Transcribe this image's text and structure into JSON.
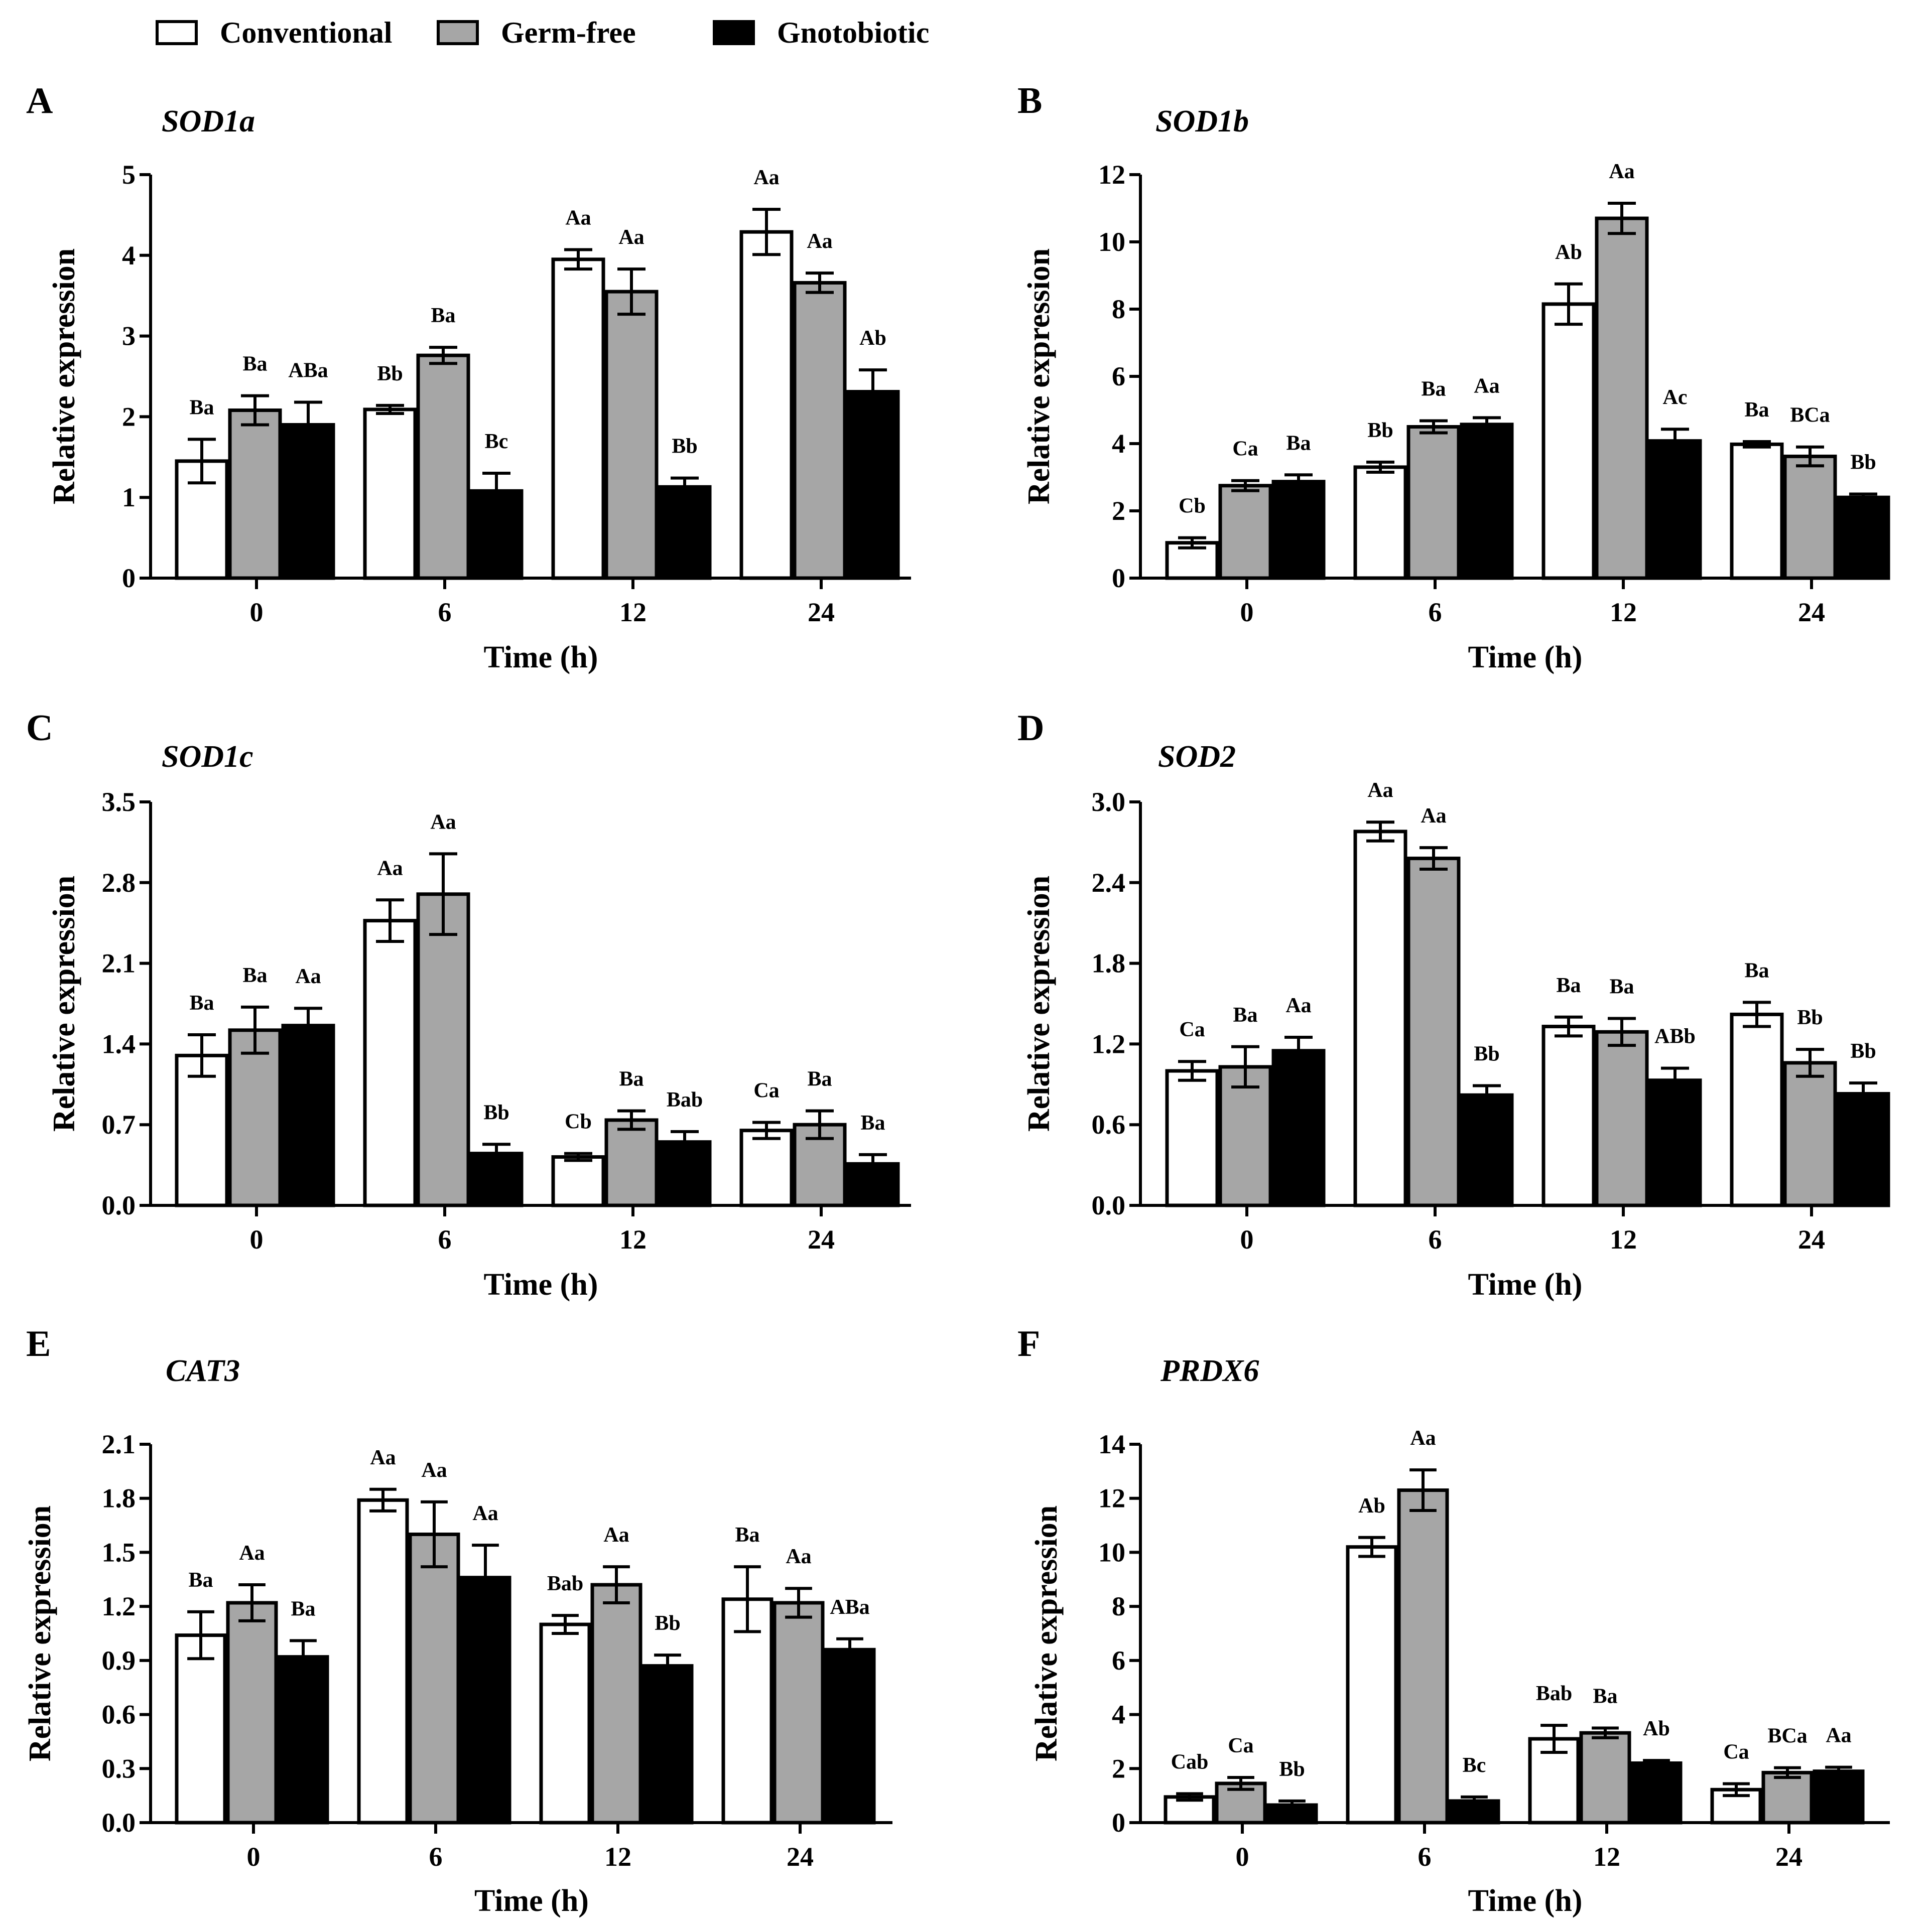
{
  "legend": {
    "items": [
      {
        "label": "Conventional",
        "color": "#ffffff"
      },
      {
        "label": "Germ-free",
        "color": "#a6a6a6"
      },
      {
        "label": "Gnotobiotic",
        "color": "#000000"
      }
    ]
  },
  "chart_data": [
    {
      "id": "A",
      "type": "bar",
      "title": "SOD1a",
      "xlabel": "Time (h)",
      "ylabel": "Relative expression",
      "categories": [
        "0",
        "6",
        "12",
        "24"
      ],
      "ylim": [
        0,
        5
      ],
      "yticks": [
        "0",
        "1",
        "2",
        "3",
        "4",
        "5"
      ],
      "series": [
        {
          "name": "Conventional",
          "values": [
            1.45,
            2.09,
            3.95,
            4.29
          ],
          "errors": [
            0.27,
            0.05,
            0.12,
            0.28
          ],
          "labels": [
            "Ba",
            "Bb",
            "Aa",
            "Aa"
          ]
        },
        {
          "name": "Germ-free",
          "values": [
            2.08,
            2.76,
            3.55,
            3.66
          ],
          "errors": [
            0.18,
            0.1,
            0.28,
            0.12
          ],
          "labels": [
            "Ba",
            "Ba",
            "Aa",
            "Aa"
          ]
        },
        {
          "name": "Gnotobiotic",
          "values": [
            1.9,
            1.08,
            1.13,
            2.31
          ],
          "errors": [
            0.28,
            0.22,
            0.11,
            0.27
          ],
          "labels": [
            "ABa",
            "Bc",
            "Bb",
            "Ab"
          ]
        }
      ]
    },
    {
      "id": "B",
      "type": "bar",
      "title": "SOD1b",
      "xlabel": "Time (h)",
      "ylabel": "Relative expression",
      "categories": [
        "0",
        "6",
        "12",
        "24"
      ],
      "ylim": [
        0,
        12
      ],
      "yticks": [
        "0",
        "2",
        "4",
        "6",
        "8",
        "10",
        "12"
      ],
      "series": [
        {
          "name": "Conventional",
          "values": [
            1.05,
            3.3,
            8.15,
            3.98
          ],
          "errors": [
            0.15,
            0.15,
            0.6,
            0.08
          ],
          "labels": [
            "Cb",
            "Bb",
            "Ab",
            "Ba"
          ]
        },
        {
          "name": "Germ-free",
          "values": [
            2.75,
            4.5,
            10.7,
            3.62
          ],
          "errors": [
            0.15,
            0.18,
            0.45,
            0.28
          ],
          "labels": [
            "Ca",
            "Ba",
            "Aa",
            "BCa"
          ]
        },
        {
          "name": "Gnotobiotic",
          "values": [
            2.87,
            4.57,
            4.08,
            2.4
          ],
          "errors": [
            0.2,
            0.2,
            0.35,
            0.1
          ],
          "labels": [
            "Ba",
            "Aa",
            "Ac",
            "Bb"
          ]
        }
      ]
    },
    {
      "id": "C",
      "type": "bar",
      "title": "SOD1c",
      "xlabel": "Time (h)",
      "ylabel": "Relative expression",
      "categories": [
        "0",
        "6",
        "12",
        "24"
      ],
      "ylim": [
        0,
        3.5
      ],
      "yticks": [
        "0.0",
        "0.7",
        "1.4",
        "2.1",
        "2.8",
        "3.5"
      ],
      "series": [
        {
          "name": "Conventional",
          "values": [
            1.3,
            2.47,
            0.42,
            0.65
          ],
          "errors": [
            0.18,
            0.18,
            0.03,
            0.07
          ],
          "labels": [
            "Ba",
            "Aa",
            "Cb",
            "Ca"
          ]
        },
        {
          "name": "Germ-free",
          "values": [
            1.52,
            2.7,
            0.74,
            0.7
          ],
          "errors": [
            0.2,
            0.35,
            0.08,
            0.12
          ],
          "labels": [
            "Ba",
            "Aa",
            "Ba",
            "Ba"
          ]
        },
        {
          "name": "Gnotobiotic",
          "values": [
            1.56,
            0.45,
            0.55,
            0.36
          ],
          "errors": [
            0.15,
            0.08,
            0.09,
            0.08
          ],
          "labels": [
            "Aa",
            "Bb",
            "Bab",
            "Ba"
          ]
        }
      ]
    },
    {
      "id": "D",
      "type": "bar",
      "title": "SOD2",
      "xlabel": "Time (h)",
      "ylabel": "Relative expression",
      "categories": [
        "0",
        "6",
        "12",
        "24"
      ],
      "ylim": [
        0,
        3.0
      ],
      "yticks": [
        "0.0",
        "0.6",
        "1.2",
        "1.8",
        "2.4",
        "3.0"
      ],
      "series": [
        {
          "name": "Conventional",
          "values": [
            1.0,
            2.78,
            1.33,
            1.42
          ],
          "errors": [
            0.07,
            0.07,
            0.07,
            0.09
          ],
          "labels": [
            "Ca",
            "Aa",
            "Ba",
            "Ba"
          ]
        },
        {
          "name": "Germ-free",
          "values": [
            1.03,
            2.58,
            1.29,
            1.06
          ],
          "errors": [
            0.15,
            0.08,
            0.1,
            0.1
          ],
          "labels": [
            "Ba",
            "Aa",
            "Ba",
            "Bb"
          ]
        },
        {
          "name": "Gnotobiotic",
          "values": [
            1.15,
            0.82,
            0.93,
            0.83
          ],
          "errors": [
            0.1,
            0.07,
            0.09,
            0.08
          ],
          "labels": [
            "Aa",
            "Bb",
            "ABb",
            "Bb"
          ]
        }
      ]
    },
    {
      "id": "E",
      "type": "bar",
      "title": "CAT3",
      "xlabel": "Time (h)",
      "ylabel": "Relative expression",
      "categories": [
        "0",
        "6",
        "12",
        "24"
      ],
      "ylim": [
        0,
        2.1
      ],
      "yticks": [
        "0.0",
        "0.3",
        "0.6",
        "0.9",
        "1.2",
        "1.5",
        "1.8",
        "2.1"
      ],
      "series": [
        {
          "name": "Conventional",
          "values": [
            1.04,
            1.79,
            1.1,
            1.24
          ],
          "errors": [
            0.13,
            0.06,
            0.05,
            0.18
          ],
          "labels": [
            "Ba",
            "Aa",
            "Bab",
            "Ba"
          ]
        },
        {
          "name": "Germ-free",
          "values": [
            1.22,
            1.6,
            1.32,
            1.22
          ],
          "errors": [
            0.1,
            0.18,
            0.1,
            0.08
          ],
          "labels": [
            "Aa",
            "Aa",
            "Aa",
            "Aa"
          ]
        },
        {
          "name": "Gnotobiotic",
          "values": [
            0.92,
            1.36,
            0.87,
            0.96
          ],
          "errors": [
            0.09,
            0.18,
            0.06,
            0.06
          ],
          "labels": [
            "Ba",
            "Aa",
            "Bb",
            "ABa"
          ]
        }
      ]
    },
    {
      "id": "F",
      "type": "bar",
      "title": "PRDX6",
      "xlabel": "Time (h)",
      "ylabel": "Relative expression",
      "categories": [
        "0",
        "6",
        "12",
        "24"
      ],
      "ylim": [
        0,
        14
      ],
      "yticks": [
        "0",
        "2",
        "4",
        "6",
        "8",
        "10",
        "12",
        "14"
      ],
      "series": [
        {
          "name": "Conventional",
          "values": [
            0.95,
            10.2,
            3.1,
            1.22
          ],
          "errors": [
            0.12,
            0.35,
            0.5,
            0.22
          ],
          "labels": [
            "Cab",
            "Ab",
            "Bab",
            "Ca"
          ]
        },
        {
          "name": "Germ-free",
          "values": [
            1.45,
            12.3,
            3.32,
            1.85
          ],
          "errors": [
            0.22,
            0.75,
            0.18,
            0.18
          ],
          "labels": [
            "Ca",
            "Aa",
            "Ba",
            "BCa"
          ]
        },
        {
          "name": "Gnotobiotic",
          "values": [
            0.65,
            0.8,
            2.2,
            1.9
          ],
          "errors": [
            0.15,
            0.15,
            0.1,
            0.15
          ],
          "labels": [
            "Bb",
            "Bc",
            "Ab",
            "Aa"
          ]
        }
      ]
    }
  ]
}
